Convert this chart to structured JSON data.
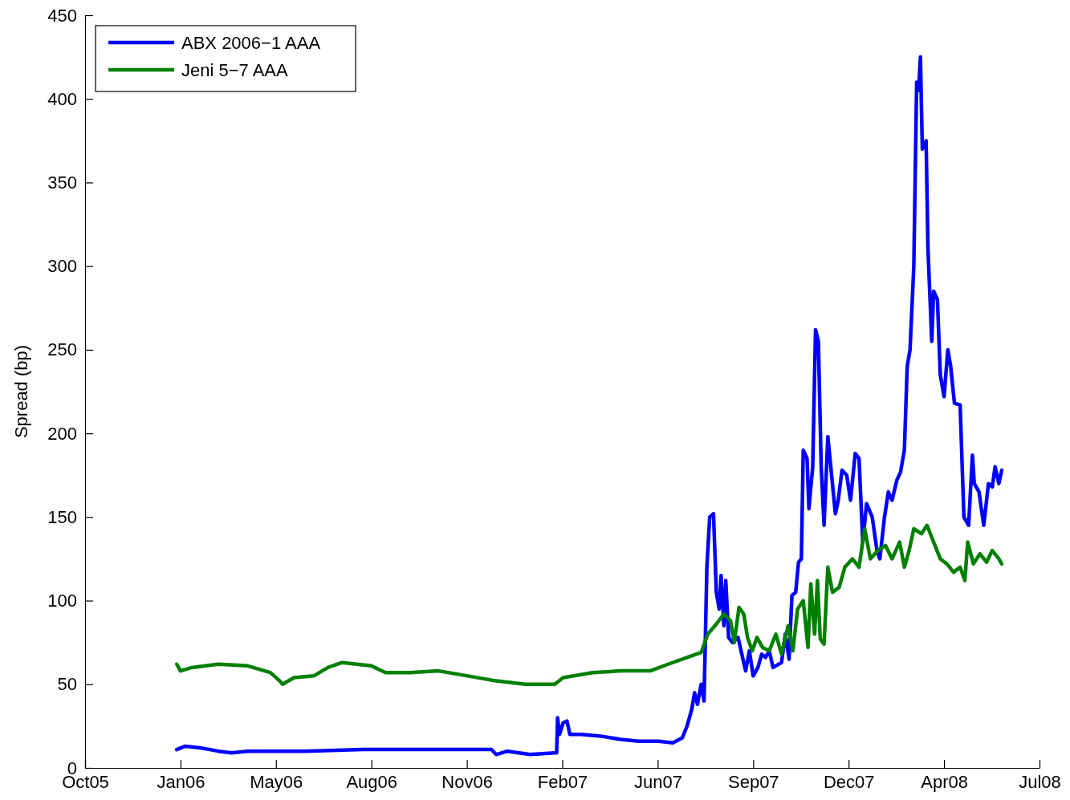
{
  "chart_data": {
    "type": "line",
    "ylabel": "Spread (bp)",
    "legend": "top left",
    "grid": false,
    "line_style": "solid",
    "marker": "none",
    "xlim": [
      "2005-10-11",
      "2008-07-17"
    ],
    "xticks": [
      {
        "value": "2005-10-11",
        "label": "Oct05"
      },
      {
        "value": "2006-01-20",
        "label": "Jan06"
      },
      {
        "value": "2006-05-01",
        "label": "May06"
      },
      {
        "value": "2006-08-10",
        "label": "Aug06"
      },
      {
        "value": "2006-11-19",
        "label": "Nov06"
      },
      {
        "value": "2007-02-28",
        "label": "Feb07"
      },
      {
        "value": "2007-06-09",
        "label": "Jun07"
      },
      {
        "value": "2007-09-18",
        "label": "Sep07"
      },
      {
        "value": "2007-12-28",
        "label": "Dec07"
      },
      {
        "value": "2008-04-07",
        "label": "Apr08"
      },
      {
        "value": "2008-07-17",
        "label": "Jul08"
      }
    ],
    "ylim": [
      0,
      450
    ],
    "yticks": [
      0,
      50,
      100,
      150,
      200,
      250,
      300,
      350,
      400,
      450
    ],
    "series": [
      {
        "name": "ABX 2006−1 AAA",
        "color": "#0000ff",
        "x": [
          "2006-01-16",
          "2006-01-25",
          "2006-02-10",
          "2006-03-01",
          "2006-03-15",
          "2006-04-01",
          "2006-06-01",
          "2006-08-01",
          "2006-11-01",
          "2006-12-15",
          "2006-12-20",
          "2007-01-01",
          "2007-01-25",
          "2007-02-20",
          "2007-02-22",
          "2007-02-23",
          "2007-02-25",
          "2007-03-01",
          "2007-03-05",
          "2007-03-08",
          "2007-03-20",
          "2007-04-10",
          "2007-05-01",
          "2007-05-20",
          "2007-06-10",
          "2007-06-25",
          "2007-07-05",
          "2007-07-10",
          "2007-07-15",
          "2007-07-18",
          "2007-07-21",
          "2007-07-25",
          "2007-07-28",
          "2007-07-31",
          "2007-08-03",
          "2007-08-07",
          "2007-08-10",
          "2007-08-13",
          "2007-08-15",
          "2007-08-18",
          "2007-08-20",
          "2007-08-23",
          "2007-08-27",
          "2007-09-02",
          "2007-09-06",
          "2007-09-10",
          "2007-09-14",
          "2007-09-18",
          "2007-09-23",
          "2007-09-27",
          "2007-10-01",
          "2007-10-05",
          "2007-10-09",
          "2007-10-18",
          "2007-10-22",
          "2007-10-26",
          "2007-10-29",
          "2007-11-02",
          "2007-11-05",
          "2007-11-08",
          "2007-11-10",
          "2007-11-14",
          "2007-11-16",
          "2007-11-20",
          "2007-11-23",
          "2007-11-26",
          "2007-11-29",
          "2007-12-02",
          "2007-12-06",
          "2007-12-10",
          "2007-12-14",
          "2007-12-17",
          "2007-12-21",
          "2007-12-26",
          "2007-12-30",
          "2008-01-04",
          "2008-01-08",
          "2008-01-12",
          "2008-01-16",
          "2008-01-22",
          "2008-01-27",
          "2008-01-30",
          "2008-02-04",
          "2008-02-08",
          "2008-02-12",
          "2008-02-17",
          "2008-02-21",
          "2008-02-25",
          "2008-02-28",
          "2008-03-02",
          "2008-03-06",
          "2008-03-09",
          "2008-03-11",
          "2008-03-13",
          "2008-03-15",
          "2008-03-19",
          "2008-03-21",
          "2008-03-25",
          "2008-03-27",
          "2008-03-31",
          "2008-04-03",
          "2008-04-07",
          "2008-04-11",
          "2008-04-14",
          "2008-04-18",
          "2008-04-24",
          "2008-04-28",
          "2008-05-03",
          "2008-05-07",
          "2008-05-09",
          "2008-05-14",
          "2008-05-19",
          "2008-05-24",
          "2008-05-28",
          "2008-05-31",
          "2008-06-04",
          "2008-06-07"
        ],
        "values": [
          11,
          13,
          12,
          10,
          9,
          10,
          10,
          11,
          11,
          11,
          8,
          10,
          8,
          9,
          9,
          30,
          20,
          27,
          28,
          20,
          20,
          19,
          17,
          16,
          16,
          15,
          18,
          25,
          35,
          45,
          38,
          50,
          40,
          120,
          150,
          152,
          105,
          95,
          115,
          85,
          112,
          78,
          75,
          78,
          68,
          58,
          70,
          55,
          60,
          68,
          66,
          70,
          60,
          63,
          80,
          65,
          103,
          105,
          123,
          125,
          190,
          185,
          155,
          180,
          262,
          255,
          180,
          145,
          198,
          175,
          152,
          160,
          178,
          175,
          160,
          188,
          185,
          135,
          158,
          150,
          130,
          125,
          150,
          165,
          160,
          172,
          177,
          190,
          240,
          250,
          300,
          410,
          405,
          425,
          370,
          375,
          310,
          255,
          285,
          280,
          235,
          222,
          250,
          240,
          218,
          217,
          150,
          145,
          187,
          170,
          165,
          145,
          170,
          168,
          180,
          170,
          178
        ]
      },
      {
        "name": "Jeni 5−7 AAA",
        "color": "#008000",
        "x": [
          "2006-01-16",
          "2006-01-20",
          "2006-02-01",
          "2006-03-01",
          "2006-04-01",
          "2006-04-25",
          "2006-05-05",
          "2006-05-08",
          "2006-05-20",
          "2006-06-10",
          "2006-06-25",
          "2006-07-10",
          "2006-08-10",
          "2006-08-25",
          "2006-09-20",
          "2006-10-20",
          "2006-11-20",
          "2006-12-20",
          "2007-01-20",
          "2007-02-20",
          "2007-03-01",
          "2007-04-01",
          "2007-05-01",
          "2007-06-01",
          "2007-06-20",
          "2007-07-10",
          "2007-07-25",
          "2007-08-01",
          "2007-08-10",
          "2007-08-18",
          "2007-08-25",
          "2007-08-29",
          "2007-09-03",
          "2007-09-08",
          "2007-09-12",
          "2007-09-17",
          "2007-09-22",
          "2007-09-28",
          "2007-10-05",
          "2007-10-12",
          "2007-10-18",
          "2007-10-25",
          "2007-10-30",
          "2007-11-04",
          "2007-11-10",
          "2007-11-15",
          "2007-11-18",
          "2007-11-22",
          "2007-11-25",
          "2007-11-28",
          "2007-12-02",
          "2007-12-06",
          "2007-12-11",
          "2007-12-18",
          "2007-12-24",
          "2008-01-01",
          "2008-01-08",
          "2008-01-14",
          "2008-01-20",
          "2008-01-28",
          "2008-02-05",
          "2008-02-12",
          "2008-02-20",
          "2008-02-25",
          "2008-03-01",
          "2008-03-06",
          "2008-03-14",
          "2008-03-20",
          "2008-03-27",
          "2008-04-03",
          "2008-04-10",
          "2008-04-17",
          "2008-04-24",
          "2008-04-29",
          "2008-05-02",
          "2008-05-08",
          "2008-05-15",
          "2008-05-22",
          "2008-05-28",
          "2008-06-04",
          "2008-06-07"
        ],
        "values": [
          62,
          58,
          60,
          62,
          61,
          57,
          52,
          50,
          54,
          55,
          60,
          63,
          61,
          57,
          57,
          58,
          55,
          52,
          50,
          50,
          54,
          57,
          58,
          58,
          62,
          66,
          69,
          80,
          86,
          92,
          88,
          75,
          96,
          92,
          78,
          70,
          78,
          72,
          70,
          80,
          68,
          85,
          70,
          95,
          100,
          72,
          110,
          80,
          112,
          77,
          74,
          120,
          105,
          108,
          120,
          125,
          120,
          143,
          125,
          130,
          133,
          125,
          135,
          120,
          130,
          143,
          140,
          145,
          135,
          125,
          122,
          117,
          120,
          112,
          135,
          122,
          128,
          123,
          130,
          125,
          122
        ]
      }
    ]
  }
}
